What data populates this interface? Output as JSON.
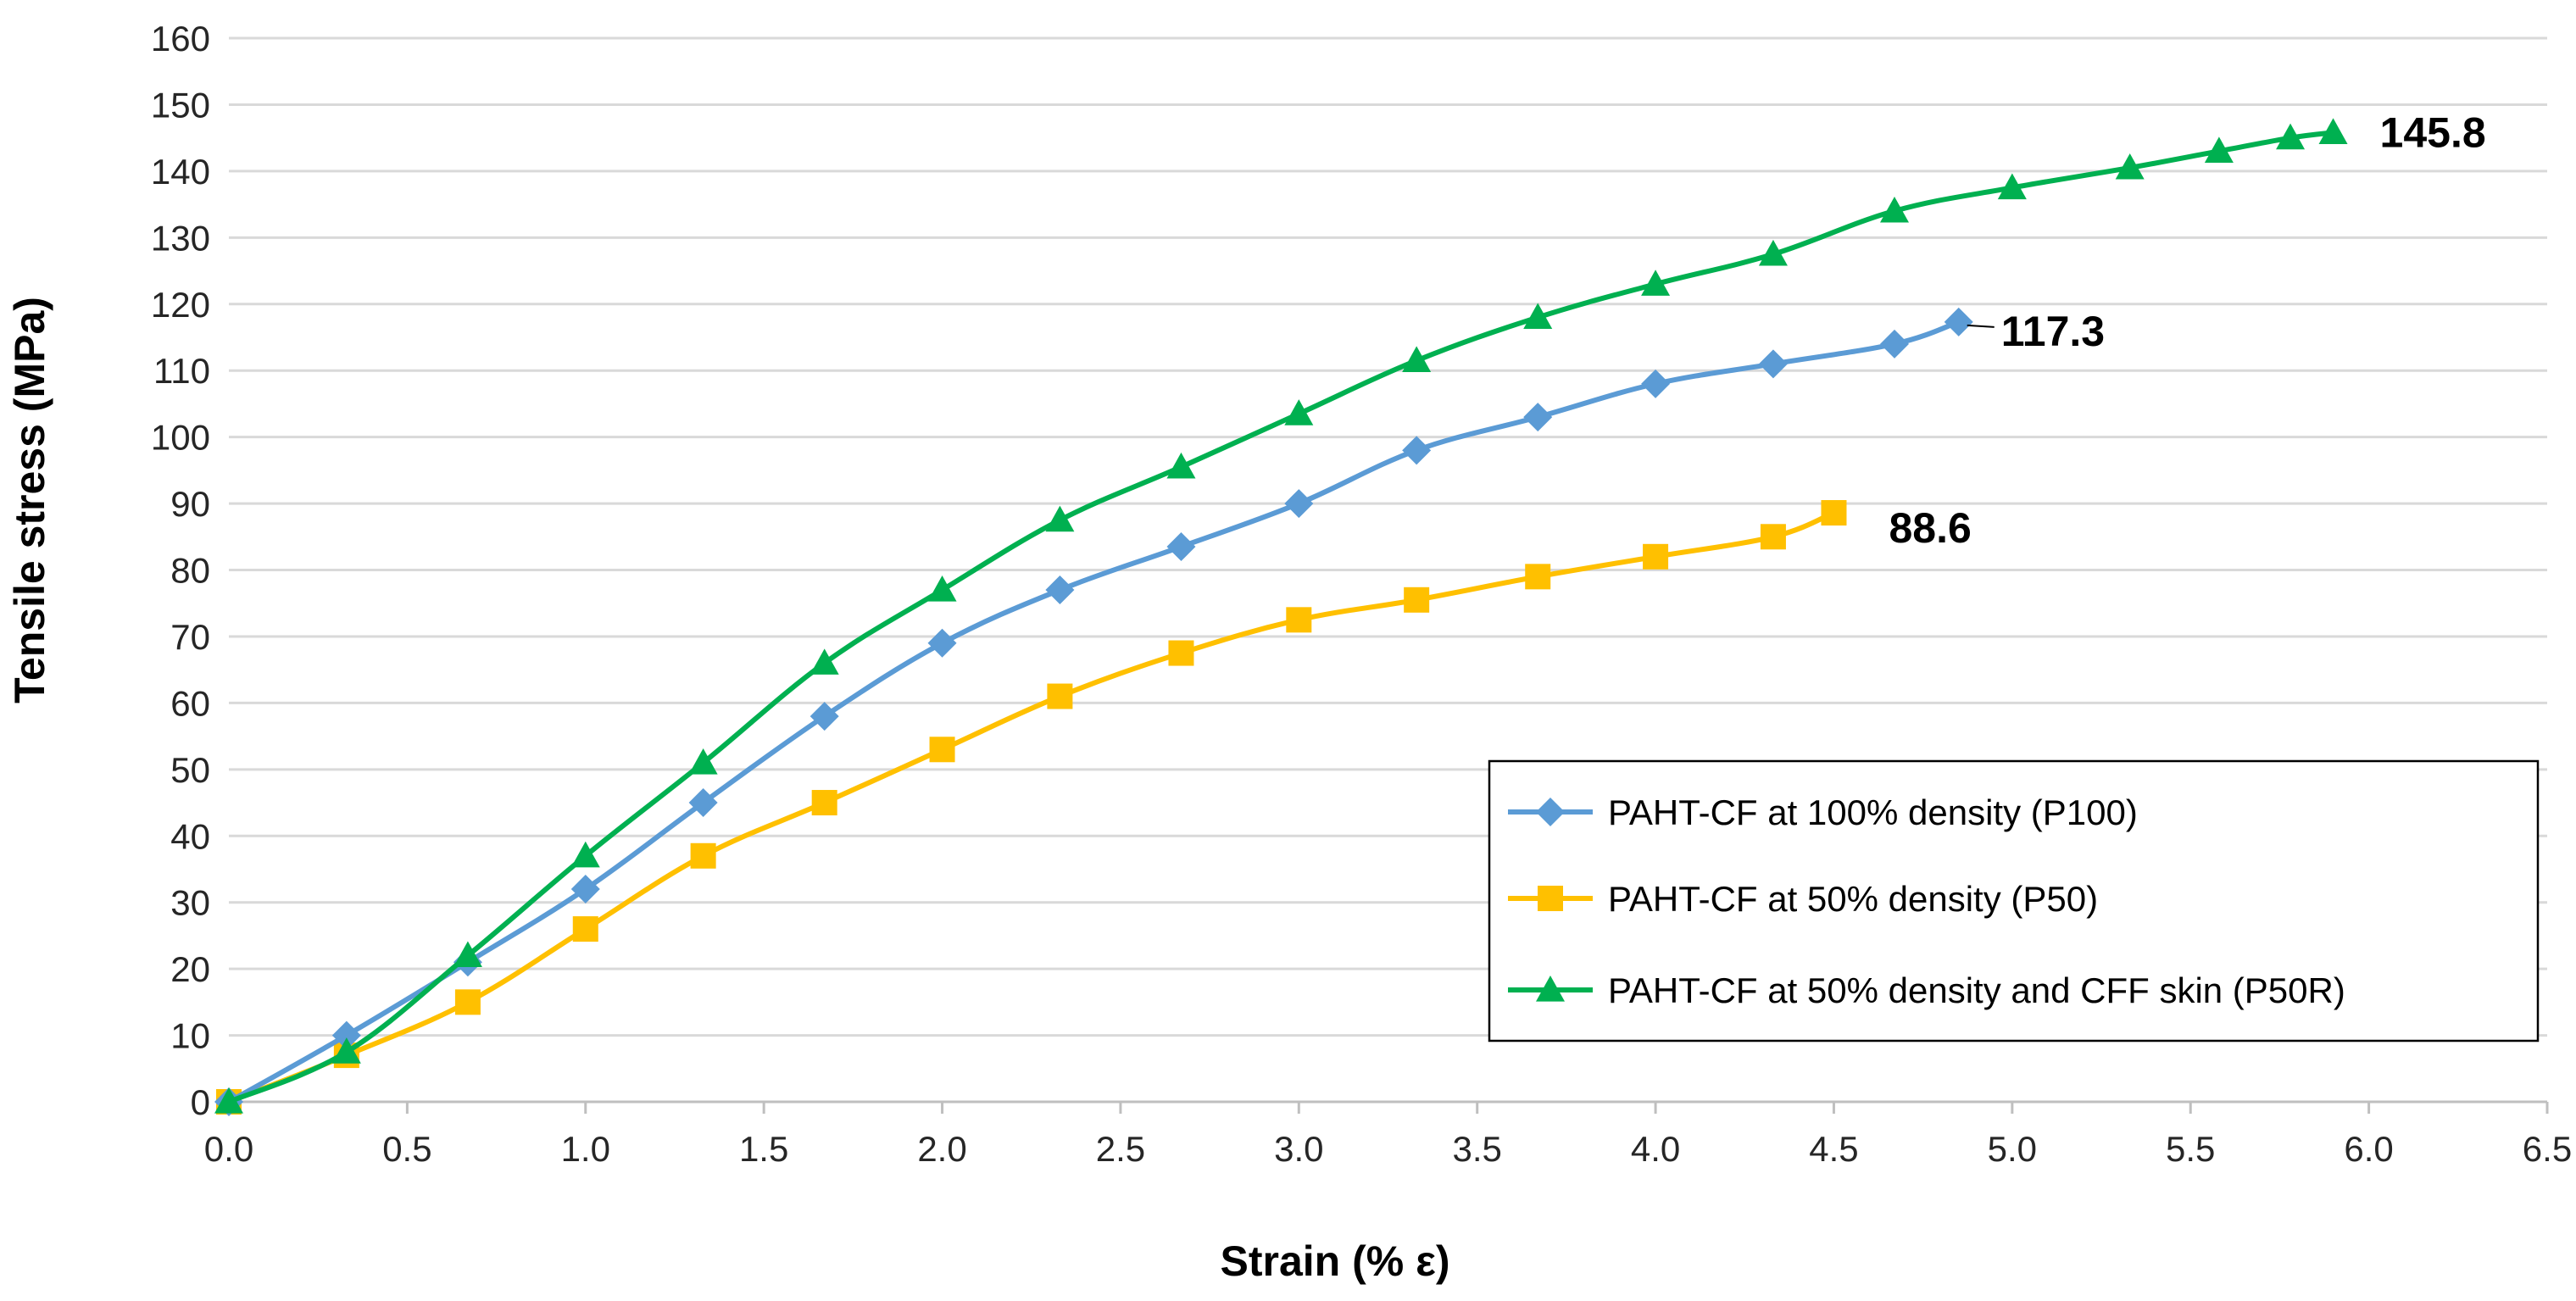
{
  "chart_data": {
    "type": "line",
    "title": "",
    "xlabel": "Strain (% ε)",
    "ylabel": "Tensile stress (MPa)",
    "xlim": [
      0,
      6.5
    ],
    "ylim": [
      0,
      160
    ],
    "x_ticks": [
      "0.0",
      "0.5",
      "1.0",
      "1.5",
      "2.0",
      "2.5",
      "3.0",
      "3.5",
      "4.0",
      "4.5",
      "5.0",
      "5.5",
      "6.0",
      "6.5"
    ],
    "y_ticks": [
      "0",
      "10",
      "20",
      "30",
      "40",
      "50",
      "60",
      "70",
      "80",
      "90",
      "100",
      "110",
      "120",
      "130",
      "140",
      "150",
      "160"
    ],
    "grid": "horizontal",
    "legend_position": "bottom-right",
    "series": [
      {
        "name": "PAHT-CF at 100% density (P100)",
        "color": "#5B9BD5",
        "marker": "diamond",
        "x": [
          0,
          0.33,
          0.67,
          1.0,
          1.33,
          1.67,
          2.0,
          2.33,
          2.67,
          3.0,
          3.33,
          3.67,
          4.0,
          4.33,
          4.67,
          4.85
        ],
        "y": [
          0,
          10,
          21,
          32,
          45,
          58,
          69,
          77,
          83.5,
          90,
          98,
          103,
          108,
          111,
          114,
          117.3
        ],
        "end_label": "117.3"
      },
      {
        "name": "PAHT-CF at 50% density (P50)",
        "color": "#FFC000",
        "marker": "square",
        "x": [
          0,
          0.33,
          0.67,
          1.0,
          1.33,
          1.67,
          2.0,
          2.33,
          2.67,
          3.0,
          3.33,
          3.67,
          4.0,
          4.33,
          4.5
        ],
        "y": [
          0,
          7,
          15,
          26,
          37,
          45,
          53,
          61,
          67.5,
          72.5,
          75.5,
          79,
          82,
          85,
          88.6
        ],
        "end_label": "88.6"
      },
      {
        "name": "PAHT-CF at 50% density and CFF skin (P50R)",
        "color": "#00B050",
        "marker": "triangle",
        "x": [
          0,
          0.33,
          0.67,
          1.0,
          1.33,
          1.67,
          2.0,
          2.33,
          2.67,
          3.0,
          3.33,
          3.67,
          4.0,
          4.33,
          4.67,
          5.0,
          5.33,
          5.58,
          5.78,
          5.9
        ],
        "y": [
          0,
          7.5,
          22,
          37,
          51,
          66,
          77,
          87.5,
          95.5,
          103.5,
          111.5,
          118,
          123,
          127.5,
          134,
          137.5,
          140.5,
          143,
          145,
          145.8
        ],
        "end_label": "145.8"
      }
    ]
  }
}
